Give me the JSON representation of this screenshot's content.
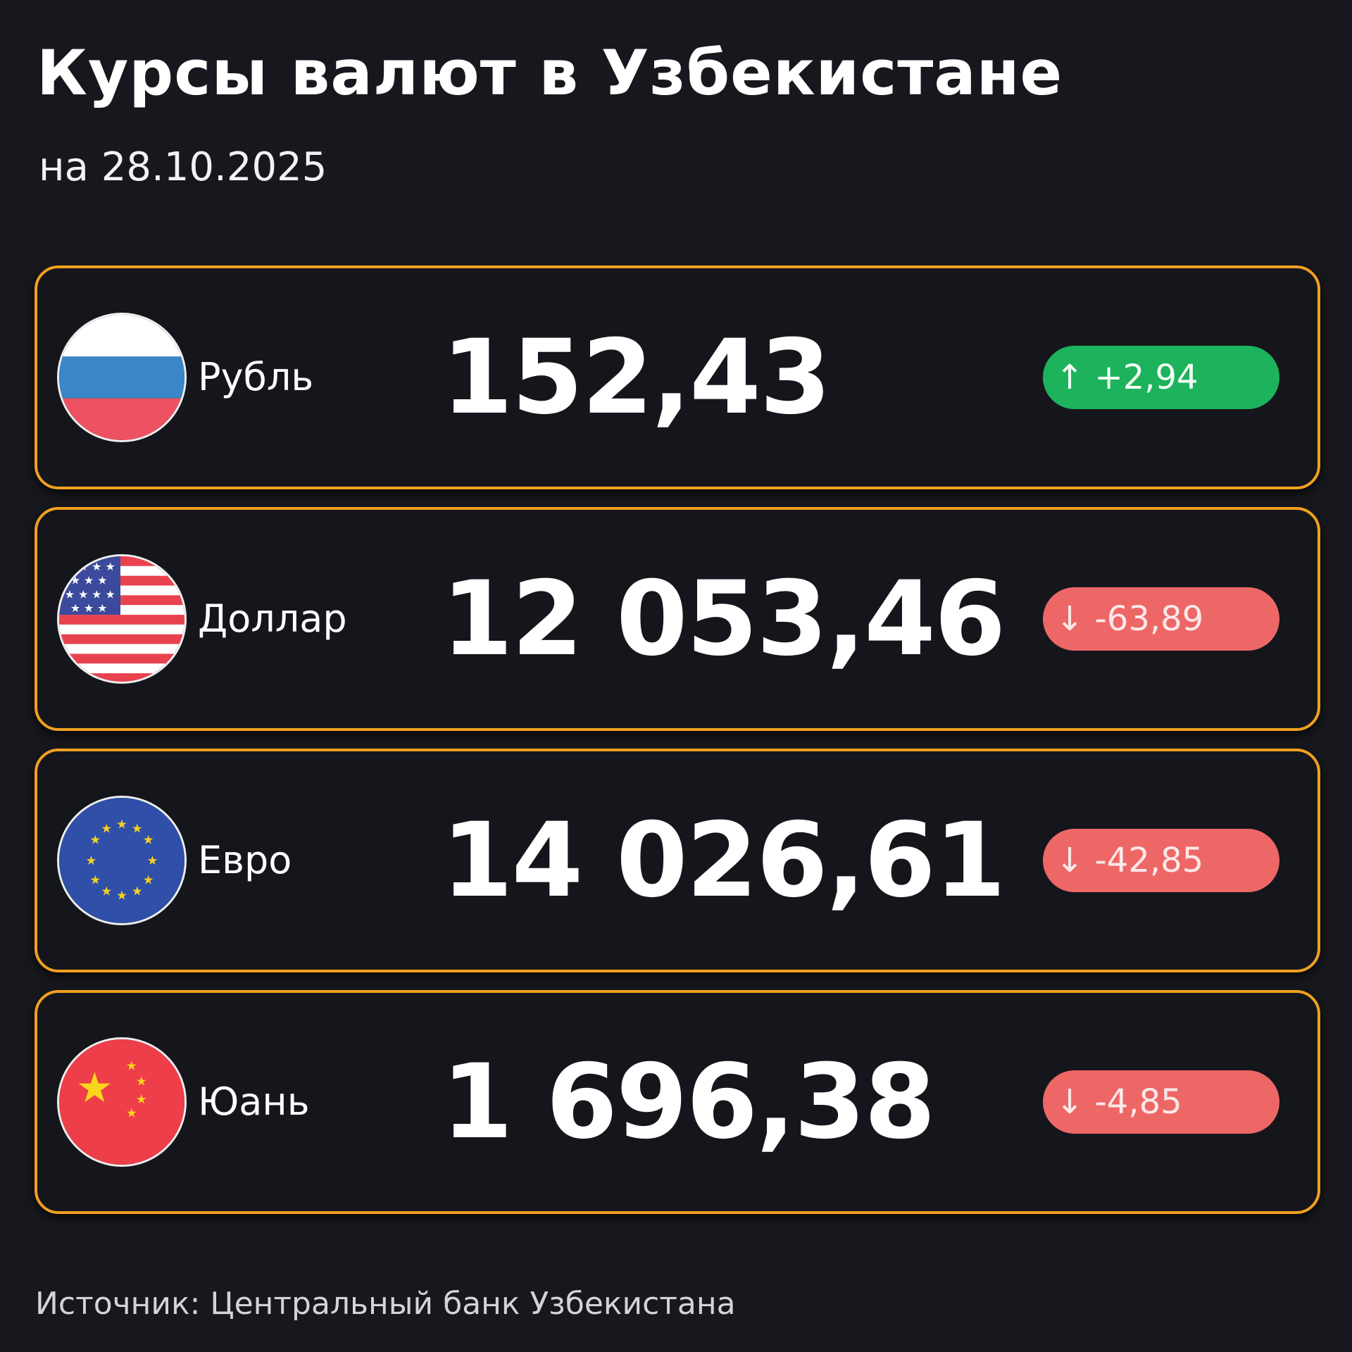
{
  "header": {
    "title": "Курсы валют в Узбекистане",
    "subtitle": "на 28.10.2025"
  },
  "colors": {
    "background": "#17181d",
    "card_border": "#f0a020",
    "up": "#1db35c",
    "down": "#ed6767"
  },
  "currencies": [
    {
      "name": "Рубль",
      "flag": "russia-flag-icon",
      "value": "152,43",
      "direction": "up",
      "arrow": "↑",
      "change": "+2,94"
    },
    {
      "name": "Доллар",
      "flag": "usa-flag-icon",
      "value": "12 053,46",
      "direction": "down",
      "arrow": "↓",
      "change": "-63,89"
    },
    {
      "name": "Евро",
      "flag": "eu-flag-icon",
      "value": "14 026,61",
      "direction": "down",
      "arrow": "↓",
      "change": "-42,85"
    },
    {
      "name": "Юань",
      "flag": "china-flag-icon",
      "value": "1 696,38",
      "direction": "down",
      "arrow": "↓",
      "change": "-4,85"
    }
  ],
  "footer": {
    "source": "Источник: Центральный банк Узбекистана"
  }
}
